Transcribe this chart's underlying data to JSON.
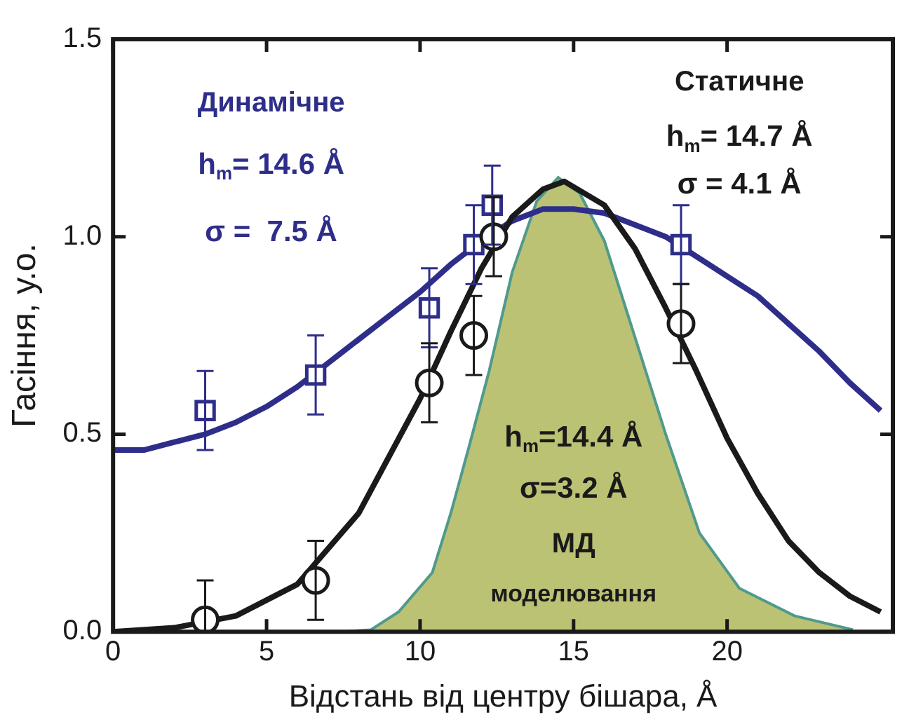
{
  "chart_data": {
    "type": "line",
    "xlabel": "Відстань від центру бішара, Å",
    "ylabel": "Гасіння, у.о.",
    "xlim": [
      0,
      25.4
    ],
    "xticks": [
      0,
      5,
      10,
      15,
      20
    ],
    "ylim": [
      0,
      1.5
    ],
    "yticks": [
      {
        "value": 0,
        "label": "0.0"
      },
      {
        "value": 0.5,
        "label": "0.5"
      },
      {
        "value": 1,
        "label": "1.0"
      },
      {
        "value": 1.5,
        "label": "1.5"
      }
    ],
    "grid": false,
    "legend": false,
    "series": [
      {
        "type": "area",
        "color": "#bcc274",
        "x": [
          7.5,
          8.4,
          9.3,
          10.4,
          11.0,
          11.6,
          12.25,
          13.0,
          13.8,
          14.5,
          15.2,
          16.0,
          16.9,
          18.0,
          19.1,
          20.4,
          22.2,
          24.1
        ],
        "values": [
          0,
          0.005,
          0.05,
          0.15,
          0.3,
          0.47,
          0.66,
          0.91,
          1.09,
          1.15,
          1.11,
          0.99,
          0.77,
          0.5,
          0.25,
          0.11,
          0.04,
          0.005
        ]
      },
      {
        "type": "line",
        "color": "#2e2e8a",
        "x": [
          0,
          1,
          2,
          3,
          4,
          5,
          6,
          7,
          8,
          9,
          10,
          11,
          12,
          13,
          14,
          15,
          16,
          17,
          18,
          19,
          20,
          21,
          22,
          23,
          24,
          25
        ],
        "values": [
          0.46,
          0.46,
          0.48,
          0.5,
          0.53,
          0.57,
          0.62,
          0.68,
          0.74,
          0.8,
          0.86,
          0.93,
          0.99,
          1.04,
          1.07,
          1.07,
          1.06,
          1.03,
          1.0,
          0.95,
          0.9,
          0.85,
          0.78,
          0.71,
          0.63,
          0.56
        ]
      },
      {
        "type": "line",
        "color": "#1a1a1a",
        "x": [
          0,
          2,
          4,
          6,
          8,
          10,
          11,
          12,
          13,
          14,
          14.7,
          16,
          17,
          18,
          19,
          20,
          21,
          22,
          23,
          24,
          25
        ],
        "values": [
          0,
          0.01,
          0.04,
          0.12,
          0.3,
          0.59,
          0.76,
          0.92,
          1.05,
          1.12,
          1.14,
          1.08,
          0.97,
          0.82,
          0.66,
          0.49,
          0.35,
          0.23,
          0.15,
          0.09,
          0.05
        ]
      },
      {
        "type": "scatter",
        "marker": "square",
        "color": "#2e2e8a",
        "x": [
          3.0,
          6.6,
          10.3,
          11.75,
          12.35,
          18.5
        ],
        "values": [
          0.56,
          0.65,
          0.82,
          0.98,
          1.08,
          0.98
        ],
        "errors": [
          0.1,
          0.1,
          0.1,
          0.1,
          0.1,
          0.1
        ]
      },
      {
        "type": "scatter",
        "marker": "circle",
        "color": "#1a1a1a",
        "x": [
          3.0,
          6.6,
          10.3,
          11.75,
          12.4,
          18.5
        ],
        "values": [
          0.03,
          0.13,
          0.63,
          0.75,
          1.0,
          0.78
        ],
        "errors": [
          0.1,
          0.1,
          0.1,
          0.1,
          0.1,
          0.1
        ]
      }
    ],
    "annotations": [
      "Динамічне",
      "h$_{m}$= 14.6 Å",
      "σ =  7.5 Å",
      "Статичне",
      "h$_{m}$= 14.7 Å",
      "σ = 4.1 Å",
      "h$_{m}$=14.4 Å",
      "σ=3.2 Å",
      "МД",
      "моделювання"
    ]
  }
}
